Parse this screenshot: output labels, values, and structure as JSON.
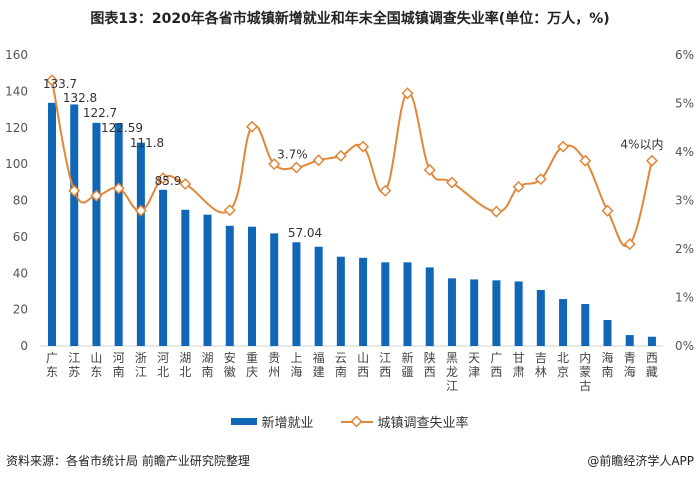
{
  "title": "图表13：2020年各省市城镇新增就业和年末全国城镇调查失业率(单位：万人，%)",
  "chart_data": {
    "type": "bar+line",
    "title": "图表13：2020年各省市城镇新增就业和年末全国城镇调查失业率(单位：万人，%)",
    "categories": [
      "广东",
      "江苏",
      "山东",
      "河南",
      "浙江",
      "河北",
      "湖北",
      "湖南",
      "安徽",
      "重庆",
      "贵州",
      "上海",
      "福建",
      "云南",
      "山西",
      "江西",
      "新疆",
      "陕西",
      "黑龙江",
      "天津",
      "广西",
      "甘肃",
      "吉林",
      "北京",
      "内蒙古",
      "海南",
      "青海",
      "西藏"
    ],
    "series": [
      {
        "name": "新增就业",
        "type": "bar",
        "axis": "left",
        "values": [
          133.7,
          132.8,
          122.7,
          122.59,
          111.8,
          85.9,
          74.9,
          72.2,
          66.1,
          65.6,
          61.9,
          57.04,
          54.6,
          49.1,
          48.5,
          46.0,
          46.0,
          43.2,
          37.2,
          36.6,
          36.1,
          35.5,
          30.8,
          25.8,
          23.1,
          14.3,
          6.0,
          5.1
        ],
        "data_labels": {
          "0": "133.7",
          "1": "132.8",
          "2": "122.7",
          "3": "122.59",
          "4": "111.8",
          "5": "85.9",
          "11": "57.04"
        },
        "color": "#0f67b5"
      },
      {
        "name": "城镇调查失业率",
        "type": "line",
        "axis": "right",
        "unit": "%",
        "values": [
          5.48,
          3.2,
          3.1,
          3.25,
          2.79,
          3.46,
          3.34,
          null,
          2.8,
          4.52,
          3.75,
          3.68,
          3.83,
          3.92,
          4.11,
          3.2,
          5.21,
          3.63,
          3.37,
          null,
          2.77,
          3.28,
          3.44,
          4.11,
          3.82,
          2.79,
          2.1,
          3.82
        ],
        "data_labels": {
          "11": "3.7%",
          "27": "4%以内"
        },
        "color": "#e0873a"
      }
    ],
    "left_axis": {
      "ylim": [
        0,
        160
      ],
      "ticks": [
        "0",
        "20",
        "40",
        "60",
        "80",
        "100",
        "120",
        "140",
        "160"
      ]
    },
    "right_axis": {
      "ylim": [
        0,
        6
      ],
      "ticks": [
        "0%",
        "1%",
        "2%",
        "3%",
        "4%",
        "5%",
        "6%"
      ]
    },
    "grid": false,
    "legend": "bottom"
  },
  "legend": {
    "bar": "新增就业",
    "line": "城镇调查失业率"
  },
  "footer": {
    "source": "资料来源：各省市统计局 前瞻产业研究院整理",
    "app": "@前瞻经济学人APP"
  }
}
